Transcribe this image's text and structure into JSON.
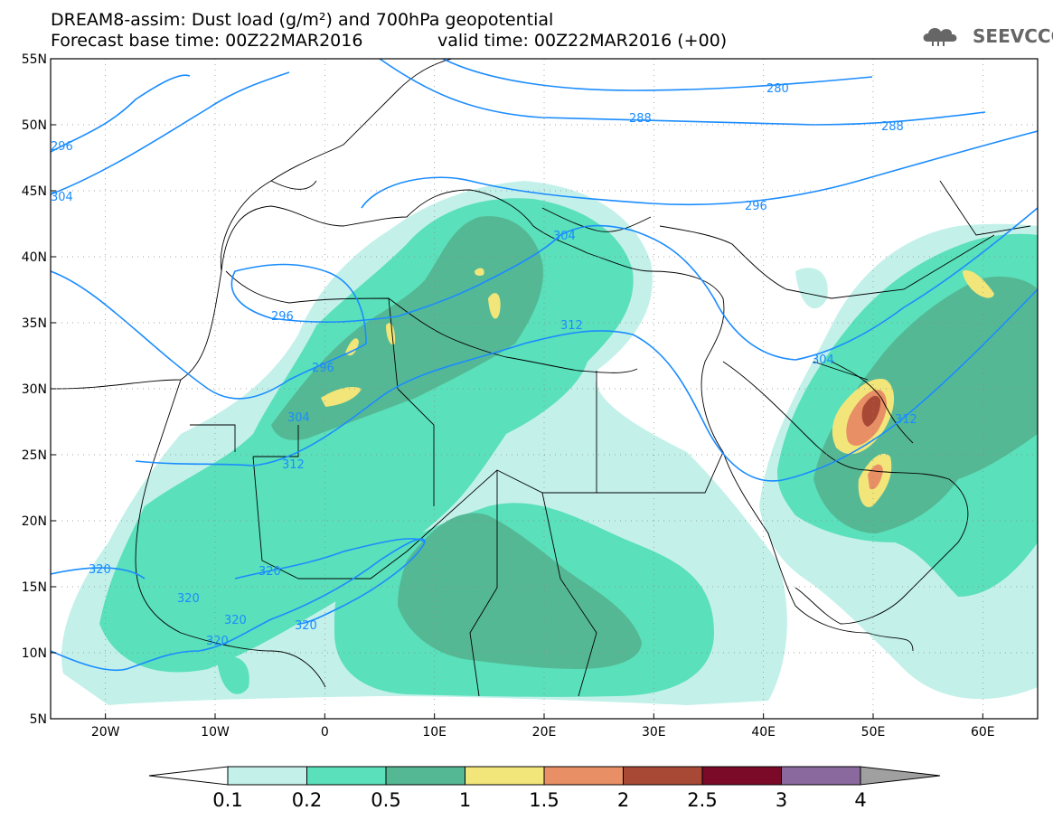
{
  "title_line1": "DREAM8-assim: Dust load (g/m²) and 700hPa geopotential",
  "title_line2": "Forecast base time: 00Z22MAR2016",
  "title_line2b": "valid time: 00Z22MAR2016 (+00)",
  "logo_text": "SEEVCCC",
  "map": {
    "lon_range": [
      -25,
      65
    ],
    "lat_range": [
      5,
      55
    ],
    "lat_ticks": [
      "55N",
      "50N",
      "45N",
      "40N",
      "35N",
      "30N",
      "25N",
      "20N",
      "15N",
      "10N",
      "5N"
    ],
    "lon_ticks": [
      "20W",
      "10W",
      "0",
      "10E",
      "20E",
      "30E",
      "40E",
      "50E",
      "60E"
    ],
    "contour_labels": [
      "280",
      "288",
      "288",
      "296",
      "296",
      "296",
      "296",
      "304",
      "304",
      "304",
      "304",
      "312",
      "312",
      "312",
      "320",
      "320",
      "320",
      "320",
      "320",
      "320"
    ],
    "colors": {
      "contour": "#1a8cff",
      "land_line": "#000000"
    }
  },
  "colorbar": {
    "labels": [
      "0.1",
      "0.2",
      "0.5",
      "1",
      "1.5",
      "2",
      "2.5",
      "3",
      "4"
    ],
    "colors": [
      "#c3f1ea",
      "#5ae0ba",
      "#55b895",
      "#f2e67a",
      "#e88f65",
      "#a74934",
      "#7a0a28",
      "#8a6a9e",
      "#a0a0a0"
    ]
  }
}
